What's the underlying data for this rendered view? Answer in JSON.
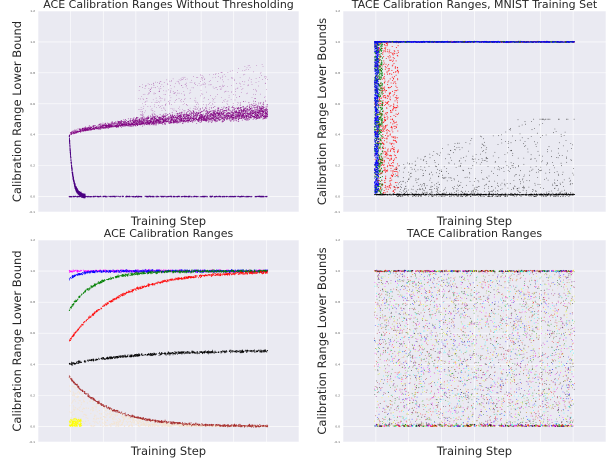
{
  "colors": {
    "plot_bg": "#EAEAF2",
    "grid": "#ffffff",
    "purple": "#800080",
    "indigo": "#4B0082",
    "red": "#FF0000",
    "green": "#008000",
    "blue": "#0000FF",
    "black": "#000000",
    "brown": "#A52A2A",
    "yellow": "#FFFF00",
    "cyan": "#00FFFF",
    "pink": "#FFC0CB",
    "magenta": "#FF00FF"
  },
  "chart_data": [
    {
      "type": "scatter",
      "title": "ACE Calibration Ranges Without Thresholding",
      "xlabel": "Training Step",
      "ylabel": "Calibration Range Lower Bound",
      "ylim": [
        -0.1,
        1.2
      ],
      "yticks": [
        "1.2",
        "1.0",
        "0.8",
        "0.6",
        "0.4",
        "0.2",
        "0.0",
        "-0.1"
      ],
      "grid": true,
      "series": [
        {
          "color": "purple",
          "description_points": [
            [
              0.0,
              0.39
            ],
            [
              0.1,
              0.44
            ],
            [
              0.3,
              0.48
            ],
            [
              0.6,
              0.51
            ],
            [
              1.0,
              0.53
            ]
          ],
          "spread_upper": 0.36
        },
        {
          "color": "indigo",
          "description_points": [
            [
              0.0,
              0.39
            ],
            [
              0.02,
              0.15
            ],
            [
              0.06,
              0.01
            ],
            [
              0.2,
              0.0
            ],
            [
              1.0,
              0.0
            ]
          ]
        }
      ]
    },
    {
      "type": "scatter",
      "title": "TACE Calibration Ranges, MNIST Training Set",
      "xlabel": "Training Step",
      "ylabel": "Calibration Range Lower Bounds",
      "ylim": [
        -0.1,
        1.2
      ],
      "yticks": [
        "1.2",
        "1.0",
        "0.8",
        "0.6",
        "0.4",
        "0.2",
        "0.0",
        "-0.1"
      ],
      "grid": true,
      "series": [
        {
          "color": "red",
          "upper_band": 1.0
        },
        {
          "color": "green",
          "upper_band": 1.0
        },
        {
          "color": "blue",
          "upper_band": 1.0
        },
        {
          "color": "black",
          "lower_band": 0.01,
          "scatter_max": 0.5
        }
      ]
    },
    {
      "type": "scatter",
      "title": "ACE Calibration Ranges",
      "xlabel": "Training Step",
      "ylabel": "Calibration Range Lower Bound",
      "ylim": [
        -0.1,
        1.2
      ],
      "yticks": [
        "1.2",
        "1.0",
        "0.8",
        "0.6",
        "0.4",
        "0.2",
        "0.0",
        "-0.1"
      ],
      "grid": true,
      "series": [
        {
          "color": "blue",
          "start": 1.0,
          "end": 1.0
        },
        {
          "color": "green",
          "start": 0.75,
          "end": 1.0
        },
        {
          "color": "red",
          "start": 0.55,
          "end": 1.0
        },
        {
          "color": "black",
          "start": 0.4,
          "end": 0.49
        },
        {
          "color": "brown",
          "start": 0.32,
          "end": 0.0
        },
        {
          "color": "yellow",
          "start": 0.05,
          "end": 0.0
        }
      ]
    },
    {
      "type": "scatter",
      "title": "TACE Calibration Ranges",
      "xlabel": "Training Step",
      "ylabel": "Calibration Range Lower Bounds",
      "ylim": [
        -0.1,
        1.2
      ],
      "yticks": [
        "1.2",
        "1.0",
        "0.8",
        "0.6",
        "0.4",
        "0.2",
        "0.0",
        "-0.1"
      ],
      "grid": true,
      "series": [
        {
          "color": "mixed",
          "range": [
            0.0,
            1.0
          ]
        }
      ]
    }
  ]
}
